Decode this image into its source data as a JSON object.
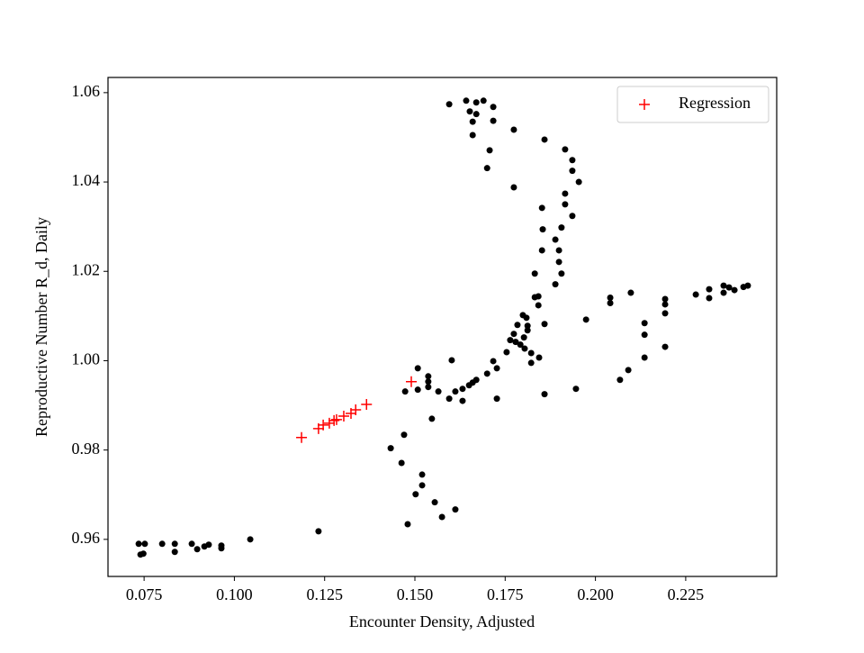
{
  "chart_data": {
    "type": "scatter",
    "x_label": "Encounter Density, Adjusted",
    "y_label": "Reproductive Number R_d, Daily",
    "xlim": [
      0.065,
      0.2502
    ],
    "ylim": [
      0.9517,
      1.0634
    ],
    "xticks": [
      0.075,
      {
        "value": 0.1,
        "label": "0.100"
      },
      0.125,
      {
        "value": 0.15,
        "label": "0.150"
      },
      0.175,
      {
        "value": 0.2,
        "label": "0.200"
      },
      0.225
    ],
    "yticks": [
      0.96,
      0.98,
      {
        "value": 1.0,
        "label": "1.00"
      },
      1.02,
      1.04,
      1.06
    ],
    "grid": false,
    "legend": "upper right",
    "series": [
      {
        "color": "#000000",
        "marker": "o",
        "x": [
          0.0735,
          0.0752,
          0.074,
          0.0748,
          0.08,
          0.0835,
          0.0835,
          0.0882,
          0.0897,
          0.0917,
          0.0929,
          0.0964,
          0.0964,
          0.1044,
          0.1233,
          0.148,
          0.147,
          0.1463,
          0.1433,
          0.1502,
          0.152,
          0.152,
          0.1555,
          0.1575,
          0.1612,
          0.1547,
          0.1473,
          0.1508,
          0.1508,
          0.1537,
          0.1537,
          0.1537,
          0.1565,
          0.1595,
          0.1602,
          0.1612,
          0.1632,
          0.1632,
          0.165,
          0.166,
          0.167,
          0.17,
          0.1717,
          0.1727,
          0.1727,
          0.1754,
          0.1764,
          0.1774,
          0.1779,
          0.1784,
          0.1792,
          0.1799,
          0.1802,
          0.1804,
          0.1809,
          0.1812,
          0.1812,
          0.1822,
          0.1822,
          0.1832,
          0.1832,
          0.1842,
          0.1842,
          0.1844,
          0.1859,
          0.1859,
          0.1852,
          0.1854,
          0.1852,
          0.1859,
          0.1889,
          0.1889,
          0.1899,
          0.1899,
          0.1906,
          0.1906,
          0.1916,
          0.1916,
          0.1916,
          0.1936,
          0.1936,
          0.1936,
          0.1954,
          0.1946,
          0.1974,
          0.1774,
          0.1774,
          0.1707,
          0.17,
          0.1717,
          0.1717,
          0.169,
          0.167,
          0.167,
          0.1642,
          0.1652,
          0.166,
          0.166,
          0.1595,
          0.2041,
          0.2041,
          0.2098,
          0.2068,
          0.2091,
          0.2136,
          0.2136,
          0.2136,
          0.2193,
          0.2193,
          0.2193,
          0.2193,
          0.2278,
          0.2315,
          0.2315,
          0.2355,
          0.2355,
          0.237,
          0.2385,
          0.241,
          0.2422
        ],
        "values": [
          0.959,
          0.959,
          0.9566,
          0.9568,
          0.959,
          0.959,
          0.9572,
          0.959,
          0.9578,
          0.9584,
          0.9588,
          0.9586,
          0.958,
          0.96,
          0.9618,
          0.9634,
          0.9834,
          0.9771,
          0.9804,
          0.9701,
          0.9745,
          0.9721,
          0.9683,
          0.965,
          0.9667,
          0.987,
          0.9931,
          0.9935,
          0.9983,
          0.9965,
          0.9953,
          0.9941,
          0.9931,
          0.9915,
          1.0001,
          0.9931,
          0.9937,
          0.991,
          0.9945,
          0.9951,
          0.9957,
          0.9971,
          0.9999,
          0.9983,
          0.9915,
          1.0019,
          1.0046,
          1.006,
          1.0042,
          1.008,
          1.0036,
          1.0102,
          1.0052,
          1.0027,
          1.0096,
          1.0068,
          1.0078,
          1.0017,
          0.9995,
          1.0142,
          1.0195,
          1.0124,
          1.0144,
          1.0007,
          1.0082,
          0.9925,
          1.0247,
          1.0294,
          1.0342,
          1.0495,
          1.0171,
          1.0271,
          1.0247,
          1.0221,
          1.0195,
          1.0298,
          1.035,
          1.0374,
          1.0473,
          1.0449,
          1.0425,
          1.0324,
          1.04,
          0.9937,
          1.0092,
          1.0517,
          1.0388,
          1.0471,
          1.0431,
          1.0568,
          1.0537,
          1.0582,
          1.0578,
          1.0552,
          1.0582,
          1.0558,
          1.0535,
          1.0505,
          1.0574,
          1.0141,
          1.0129,
          1.0152,
          0.9957,
          0.9979,
          1.0084,
          1.0058,
          1.0007,
          1.0138,
          1.0126,
          1.0106,
          1.0031,
          1.0148,
          1.016,
          1.014,
          1.0168,
          1.0152,
          1.0164,
          1.0158,
          1.0165,
          1.0168
        ]
      },
      {
        "name": "Regression",
        "color": "#ff0000",
        "marker": "+",
        "x": [
          0.1186,
          0.1233,
          0.1246,
          0.1263,
          0.1276,
          0.1283,
          0.1303,
          0.1323,
          0.1336,
          0.1366,
          0.149
        ],
        "values": [
          0.9828,
          0.9848,
          0.9856,
          0.986,
          0.9866,
          0.9868,
          0.9876,
          0.9882,
          0.989,
          0.9902,
          0.9953
        ]
      }
    ]
  }
}
